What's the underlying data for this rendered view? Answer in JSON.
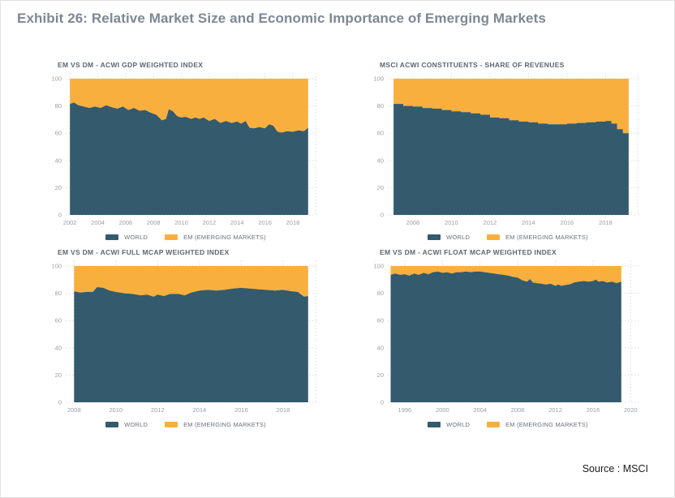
{
  "page": {
    "title": "Exhibit 26: Relative Market Size and Economic Importance of Emerging Markets",
    "source": "Source : MSCI",
    "colors": {
      "world": "#345A6D",
      "em": "#F9AF3D",
      "main_title": "#7E8795",
      "chart_title": "#5C666E",
      "axis_label": "#9A9FA4",
      "grid": "#DCDCDC"
    }
  },
  "chart_data": [
    {
      "type": "area",
      "title": "EM VS DM - ACWI GDP WEIGHTED INDEX",
      "xlabel": "",
      "ylabel": "",
      "stacked_total": 100,
      "ylim": [
        0,
        100
      ],
      "y_ticks": [
        0,
        20,
        40,
        60,
        80,
        100
      ],
      "x_domain": [
        2001.7,
        2019.4
      ],
      "x_ticks": [
        2002,
        2004,
        2006,
        2008,
        2010,
        2012,
        2014,
        2016,
        2018
      ],
      "grid": true,
      "legend_position": "bottom",
      "interpolation": "linear",
      "em_note": "EM series is the complement: 100 - WORLD",
      "series": [
        {
          "name": "WORLD",
          "color": "#345A6D",
          "points": [
            [
              2002,
              81.5
            ],
            [
              2002.3,
              82.5
            ],
            [
              2002.6,
              80.5
            ],
            [
              2003,
              79.5
            ],
            [
              2003.4,
              78.5
            ],
            [
              2003.8,
              79.5
            ],
            [
              2004.2,
              78.5
            ],
            [
              2004.6,
              80.5
            ],
            [
              2005,
              79
            ],
            [
              2005.4,
              78
            ],
            [
              2005.8,
              79.5
            ],
            [
              2006.2,
              77
            ],
            [
              2006.6,
              78.5
            ],
            [
              2007,
              76.5
            ],
            [
              2007.4,
              77
            ],
            [
              2007.8,
              75
            ],
            [
              2008.2,
              73.5
            ],
            [
              2008.6,
              69.5
            ],
            [
              2008.9,
              70.5
            ],
            [
              2009.1,
              77.5
            ],
            [
              2009.4,
              76
            ],
            [
              2009.7,
              72.5
            ],
            [
              2010,
              71.5
            ],
            [
              2010.3,
              72
            ],
            [
              2010.7,
              70.5
            ],
            [
              2011,
              71.5
            ],
            [
              2011.3,
              70.5
            ],
            [
              2011.6,
              71.5
            ],
            [
              2012,
              69
            ],
            [
              2012.4,
              70.5
            ],
            [
              2012.8,
              67.5
            ],
            [
              2013.2,
              69
            ],
            [
              2013.6,
              67.5
            ],
            [
              2014,
              68.5
            ],
            [
              2014.3,
              67
            ],
            [
              2014.6,
              69
            ],
            [
              2014.9,
              64
            ],
            [
              2015.2,
              63.5
            ],
            [
              2015.6,
              64.5
            ],
            [
              2016,
              63.5
            ],
            [
              2016.3,
              66.5
            ],
            [
              2016.6,
              65.5
            ],
            [
              2016.9,
              61
            ],
            [
              2017.2,
              60.5
            ],
            [
              2017.6,
              61.5
            ],
            [
              2018,
              61
            ],
            [
              2018.4,
              62
            ],
            [
              2018.8,
              61.5
            ],
            [
              2019.1,
              64
            ]
          ]
        },
        {
          "name": "EM (EMERGING MARKETS)",
          "color": "#F9AF3D",
          "values": "complement_to_100"
        }
      ]
    },
    {
      "type": "area",
      "title": "MSCI ACWI CONSTITUENTS - SHARE OF REVENUES",
      "xlabel": "",
      "ylabel": "",
      "stacked_total": 100,
      "ylim": [
        0,
        100
      ],
      "y_ticks": [
        0,
        20,
        40,
        60,
        80,
        100
      ],
      "x_domain": [
        2006.7,
        2019.5
      ],
      "x_ticks": [
        2008,
        2010,
        2012,
        2014,
        2016,
        2018
      ],
      "grid": true,
      "legend_position": "bottom",
      "interpolation": "step",
      "em_note": "EM series is the complement: 100 - WORLD",
      "series": [
        {
          "name": "WORLD",
          "color": "#345A6D",
          "points": [
            [
              2007,
              81.5
            ],
            [
              2007.5,
              80
            ],
            [
              2008,
              79.5
            ],
            [
              2008.5,
              78.5
            ],
            [
              2009,
              78
            ],
            [
              2009.5,
              77
            ],
            [
              2010,
              76
            ],
            [
              2010.5,
              75.5
            ],
            [
              2011,
              74.5
            ],
            [
              2011.5,
              73.5
            ],
            [
              2012,
              71.5
            ],
            [
              2012.5,
              71
            ],
            [
              2013,
              69.5
            ],
            [
              2013.5,
              68.5
            ],
            [
              2014,
              68
            ],
            [
              2014.5,
              67
            ],
            [
              2015,
              66.5
            ],
            [
              2015.5,
              66.5
            ],
            [
              2016,
              67
            ],
            [
              2016.5,
              67.5
            ],
            [
              2017,
              68
            ],
            [
              2017.5,
              68.5
            ],
            [
              2018,
              69
            ],
            [
              2018.3,
              67
            ],
            [
              2018.6,
              63
            ],
            [
              2018.9,
              60
            ],
            [
              2019.2,
              59.5
            ]
          ]
        },
        {
          "name": "EM (EMERGING MARKETS)",
          "color": "#F9AF3D",
          "values": "complement_to_100"
        }
      ]
    },
    {
      "type": "area",
      "title": "EM VS DM - ACWI FULL MCAP WEIGHTED INDEX",
      "xlabel": "",
      "ylabel": "",
      "stacked_total": 100,
      "ylim": [
        0,
        100
      ],
      "y_ticks": [
        0,
        20,
        40,
        60,
        80,
        100
      ],
      "x_domain": [
        2007.6,
        2019.4
      ],
      "x_ticks": [
        2008,
        2010,
        2012,
        2014,
        2016,
        2018
      ],
      "grid": true,
      "legend_position": "bottom",
      "interpolation": "linear",
      "em_note": "EM series is the complement: 100 - WORLD",
      "series": [
        {
          "name": "WORLD",
          "color": "#345A6D",
          "points": [
            [
              2008,
              81.5
            ],
            [
              2008.3,
              80.5
            ],
            [
              2008.6,
              81
            ],
            [
              2008.9,
              81
            ],
            [
              2009.1,
              84.5
            ],
            [
              2009.4,
              84
            ],
            [
              2009.7,
              82
            ],
            [
              2010,
              81
            ],
            [
              2010.4,
              80
            ],
            [
              2010.8,
              79.5
            ],
            [
              2011.2,
              78.5
            ],
            [
              2011.5,
              79
            ],
            [
              2011.8,
              77.5
            ],
            [
              2012,
              79
            ],
            [
              2012.3,
              78
            ],
            [
              2012.6,
              79.5
            ],
            [
              2013,
              79.5
            ],
            [
              2013.3,
              78.5
            ],
            [
              2013.6,
              80.5
            ],
            [
              2014,
              82
            ],
            [
              2014.4,
              82.5
            ],
            [
              2014.8,
              82
            ],
            [
              2015.2,
              82.5
            ],
            [
              2015.6,
              83.5
            ],
            [
              2016,
              84
            ],
            [
              2016.4,
              83.5
            ],
            [
              2016.8,
              83
            ],
            [
              2017.2,
              82.5
            ],
            [
              2017.6,
              82
            ],
            [
              2018,
              82.5
            ],
            [
              2018.4,
              81.5
            ],
            [
              2018.7,
              81
            ],
            [
              2019,
              77.5
            ],
            [
              2019.2,
              78
            ]
          ]
        },
        {
          "name": "EM (EMERGING MARKETS)",
          "color": "#F9AF3D",
          "values": "complement_to_100"
        }
      ]
    },
    {
      "type": "area",
      "title": "EM VS DM - ACWI FLOAT MCAP WEIGHTED INDEX",
      "xlabel": "",
      "ylabel": "",
      "stacked_total": 100,
      "ylim": [
        0,
        100
      ],
      "y_ticks": [
        0,
        20,
        40,
        60,
        80,
        100
      ],
      "x_domain": [
        1994.2,
        2020.4
      ],
      "x_ticks": [
        1996,
        2000,
        2004,
        2008,
        2012,
        2016,
        2020
      ],
      "grid": true,
      "legend_position": "bottom",
      "interpolation": "linear",
      "em_note": "EM series is the complement: 100 - WORLD",
      "series": [
        {
          "name": "WORLD",
          "color": "#345A6D",
          "points": [
            [
              1994.5,
              93.5
            ],
            [
              1995,
              94.5
            ],
            [
              1995.5,
              93.5
            ],
            [
              1996,
              94
            ],
            [
              1996.5,
              93
            ],
            [
              1997,
              94.5
            ],
            [
              1997.5,
              93.5
            ],
            [
              1998,
              95
            ],
            [
              1998.5,
              94
            ],
            [
              1999,
              95.5
            ],
            [
              1999.5,
              96
            ],
            [
              2000,
              95
            ],
            [
              2000.5,
              95.5
            ],
            [
              2001,
              94.5
            ],
            [
              2001.5,
              95.5
            ],
            [
              2002,
              95.5
            ],
            [
              2002.5,
              96
            ],
            [
              2003,
              95.5
            ],
            [
              2003.5,
              96
            ],
            [
              2004,
              96
            ],
            [
              2004.5,
              95.5
            ],
            [
              2005,
              95
            ],
            [
              2005.5,
              94.5
            ],
            [
              2006,
              94
            ],
            [
              2006.5,
              93.5
            ],
            [
              2007,
              93
            ],
            [
              2007.5,
              92
            ],
            [
              2008,
              91.5
            ],
            [
              2008.5,
              89.5
            ],
            [
              2009,
              88.5
            ],
            [
              2009.3,
              90.5
            ],
            [
              2009.6,
              88
            ],
            [
              2010,
              87.5
            ],
            [
              2010.5,
              87
            ],
            [
              2011,
              86.5
            ],
            [
              2011.5,
              87
            ],
            [
              2012,
              85.5
            ],
            [
              2012.3,
              86.5
            ],
            [
              2012.6,
              85.5
            ],
            [
              2013,
              86
            ],
            [
              2013.5,
              86.5
            ],
            [
              2014,
              88
            ],
            [
              2014.5,
              88.5
            ],
            [
              2015,
              89
            ],
            [
              2015.5,
              88.5
            ],
            [
              2016,
              89
            ],
            [
              2016.3,
              90
            ],
            [
              2016.6,
              88.5
            ],
            [
              2017,
              89
            ],
            [
              2017.5,
              88
            ],
            [
              2018,
              88.5
            ],
            [
              2018.5,
              87.5
            ],
            [
              2019,
              88.5
            ]
          ]
        },
        {
          "name": "EM (EMERGING MARKETS)",
          "color": "#F9AF3D",
          "values": "complement_to_100"
        }
      ]
    }
  ]
}
